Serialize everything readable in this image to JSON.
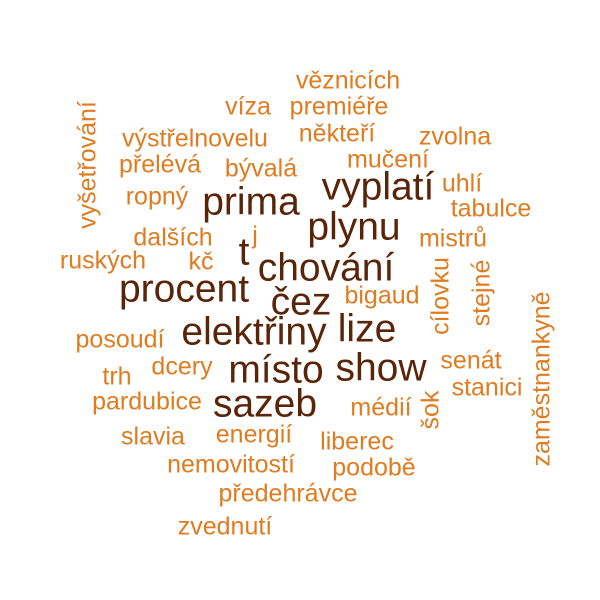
{
  "colors": {
    "light": "#e07b1f",
    "dark": "#5a2408",
    "background": "#ffffff"
  },
  "words": [
    "věznicích",
    "víza",
    "premiéře",
    "výstřelnovelu",
    "někteří",
    "zvolna",
    "přelévá",
    "bývalá",
    "mučení",
    "vyšetřování",
    "vyplatí",
    "uhlí",
    "ropný",
    "prima",
    "tabulce",
    "plynu",
    "dalších",
    "j",
    "t",
    "mistrů",
    "ruských",
    "kč",
    "chování",
    "procent",
    "čez",
    "bigaud",
    "cílovku",
    "stejné",
    "zaměstnankyně",
    "posoudí",
    "elektřiny",
    "lize",
    "senát",
    "trh",
    "dcery",
    "místo",
    "show",
    "stanici",
    "pardubice",
    "sazeb",
    "médií",
    "šok",
    "slavia",
    "energií",
    "liberec",
    "nemovitostí",
    "podobě",
    "předehrávce",
    "zvednutí"
  ]
}
